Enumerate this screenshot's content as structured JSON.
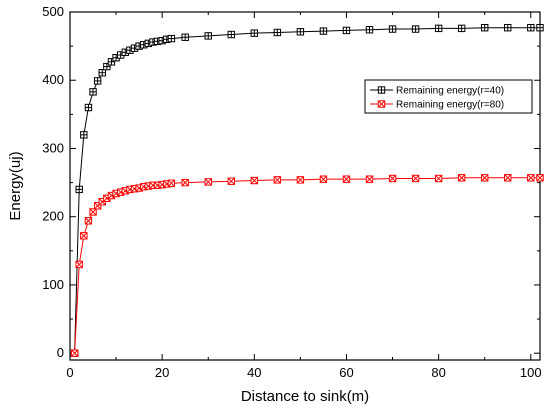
{
  "chart_data": {
    "type": "line",
    "title": "",
    "xlabel": "Distance to sink(m)",
    "ylabel": "Energy(uj)",
    "xlim": [
      0,
      102
    ],
    "ylim": [
      -10,
      500
    ],
    "xticks": [
      "0",
      "20",
      "40",
      "60",
      "80",
      "100"
    ],
    "yticks": [
      "0",
      "100",
      "200",
      "300",
      "400",
      "500"
    ],
    "grid": false,
    "legend_position": "right, upper-middle",
    "series": [
      {
        "name": "Remaining energy(r=40)",
        "color": "#000000",
        "marker": "square-plus",
        "x": [
          1,
          2,
          3,
          4,
          5,
          6,
          7,
          8,
          9,
          10,
          11,
          12,
          13,
          14,
          15,
          16,
          17,
          18,
          19,
          20,
          21,
          22,
          25,
          30,
          35,
          40,
          45,
          50,
          55,
          60,
          65,
          70,
          75,
          80,
          85,
          90,
          95,
          100,
          102
        ],
        "y": [
          0,
          240,
          320,
          360,
          383,
          399,
          411,
          420,
          427,
          433,
          437,
          441,
          444,
          447,
          450,
          452,
          454,
          456,
          457,
          458,
          460,
          461,
          463,
          465,
          467,
          469,
          470,
          471,
          472,
          473,
          474,
          475,
          475,
          476,
          476,
          477,
          477,
          477,
          477
        ]
      },
      {
        "name": "Remaining energy(r=80)",
        "color": "#ff0000",
        "marker": "square-x",
        "x": [
          1,
          2,
          3,
          4,
          5,
          6,
          7,
          8,
          9,
          10,
          11,
          12,
          13,
          14,
          15,
          16,
          17,
          18,
          19,
          20,
          21,
          22,
          25,
          30,
          35,
          40,
          45,
          50,
          55,
          60,
          65,
          70,
          75,
          80,
          85,
          90,
          95,
          100,
          102
        ],
        "y": [
          0,
          130,
          172,
          194,
          207,
          216,
          222,
          227,
          231,
          234,
          236,
          238,
          240,
          241,
          242,
          244,
          245,
          246,
          246,
          247,
          248,
          249,
          250,
          251,
          252,
          253,
          254,
          254,
          255,
          255,
          255,
          256,
          256,
          256,
          257,
          257,
          257,
          257,
          257
        ]
      }
    ]
  }
}
